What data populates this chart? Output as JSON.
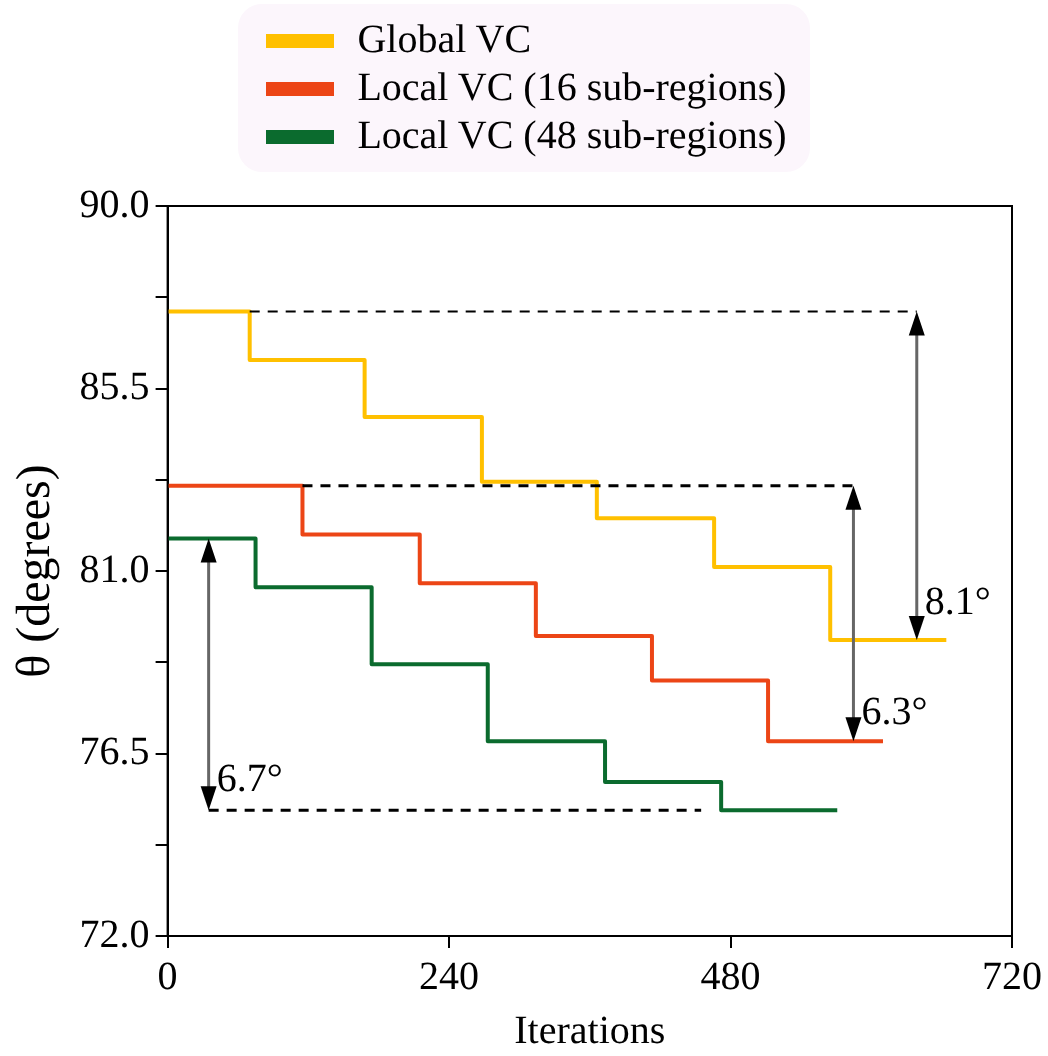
{
  "chart_data": {
    "type": "step",
    "xlabel": "Iterations",
    "ylabel": "θ (degrees)",
    "series": [
      {
        "name": "Global VC",
        "color": "#ffc000",
        "x": [
          0,
          70,
          168,
          268,
          366,
          466,
          565,
          664
        ],
        "values": [
          87.4,
          86.2,
          84.8,
          83.2,
          82.3,
          81.1,
          79.3,
          79.3
        ]
      },
      {
        "name": "Local VC (16 sub-regions)",
        "color": "#ec4516",
        "x": [
          0,
          115,
          215,
          314,
          413,
          512,
          610
        ],
        "values": [
          83.1,
          81.9,
          80.7,
          79.4,
          78.3,
          76.8,
          76.8
        ]
      },
      {
        "name": "Local VC (48 sub-regions)",
        "color": "#0b6b2e",
        "x": [
          0,
          75,
          174,
          273,
          373,
          472,
          571
        ],
        "values": [
          81.8,
          80.6,
          78.7,
          76.8,
          75.8,
          75.1,
          75.1
        ]
      }
    ],
    "xlim": [
      0,
      720
    ],
    "xticks": [
      0,
      240,
      480,
      720
    ],
    "ylim": [
      72,
      90
    ],
    "yticks": [
      {
        "value": 72,
        "label": "72.0"
      },
      {
        "value": 74.25,
        "label": null
      },
      {
        "value": 76.5,
        "label": "76.5"
      },
      {
        "value": 78.75,
        "label": null
      },
      {
        "value": 81,
        "label": "81.0"
      },
      {
        "value": 83.25,
        "label": null
      },
      {
        "value": 85.5,
        "label": "85.5"
      },
      {
        "value": 87.75,
        "label": null
      },
      {
        "value": 90,
        "label": "90.0"
      }
    ],
    "annotations": [
      "8.1°",
      "6.3°",
      {
        "text": "6.7°",
        "x": 35,
        "y": 81.8
      }
    ],
    "grid": false,
    "legend": "top"
  }
}
